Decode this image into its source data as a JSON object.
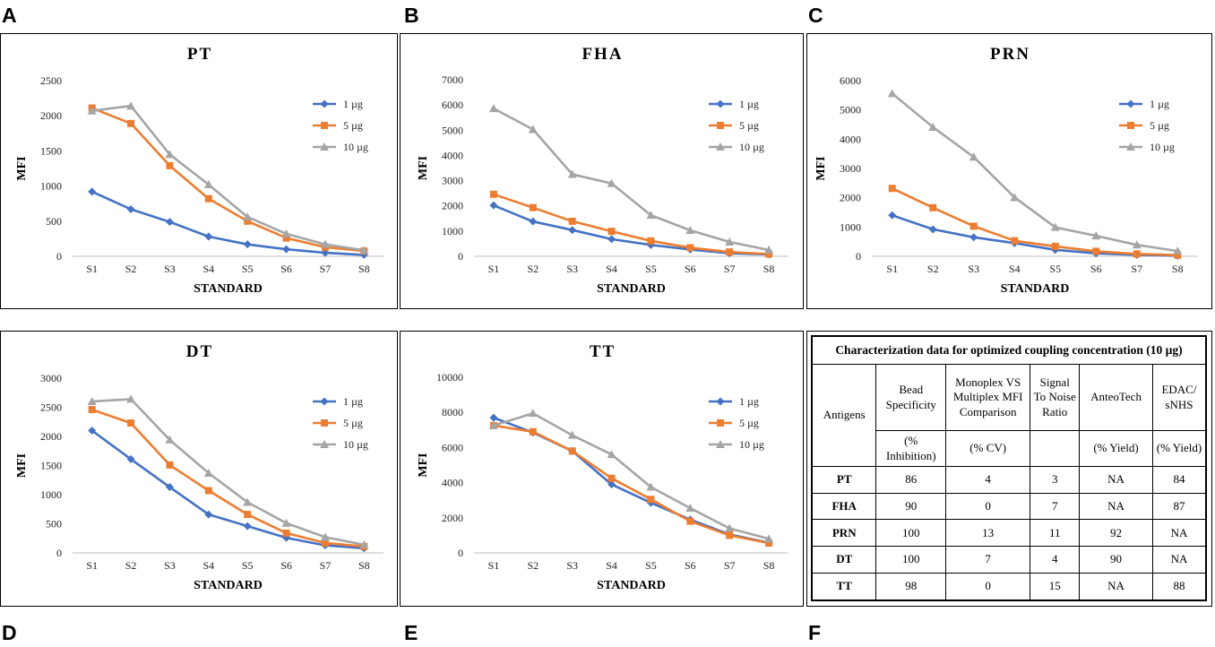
{
  "panel_labels": [
    "A",
    "B",
    "C",
    "D",
    "E",
    "F"
  ],
  "series_colors": [
    "#4472C4",
    "#ED7D31",
    "#A5A5A5"
  ],
  "legend": [
    "1 µg",
    "5 µg",
    "10 µg"
  ],
  "chart_data": [
    {
      "type": "line",
      "title": "PT",
      "xlabel": "STANDARD",
      "ylabel": "MFI",
      "categories": [
        "S1",
        "S2",
        "S3",
        "S4",
        "S5",
        "S6",
        "S7",
        "S8"
      ],
      "ylim": [
        0,
        2500
      ],
      "yticks": [
        0,
        500,
        1000,
        1500,
        2000,
        2500
      ],
      "series": [
        {
          "name": "1 µg",
          "values": [
            920,
            670,
            490,
            280,
            170,
            100,
            50,
            20
          ]
        },
        {
          "name": "5 µg",
          "values": [
            2110,
            1890,
            1290,
            820,
            500,
            260,
            130,
            75
          ]
        },
        {
          "name": "10 µg",
          "values": [
            2070,
            2140,
            1450,
            1020,
            560,
            320,
            170,
            85
          ]
        }
      ]
    },
    {
      "type": "line",
      "title": "FHA",
      "xlabel": "STANDARD",
      "ylabel": "MFI",
      "categories": [
        "S1",
        "S2",
        "S3",
        "S4",
        "S5",
        "S6",
        "S7",
        "S8"
      ],
      "ylim": [
        0,
        7000
      ],
      "yticks": [
        0,
        1000,
        2000,
        3000,
        4000,
        5000,
        6000,
        7000
      ],
      "series": [
        {
          "name": "1 µg",
          "values": [
            2020,
            1380,
            1040,
            680,
            450,
            270,
            120,
            70
          ]
        },
        {
          "name": "5 µg",
          "values": [
            2460,
            1930,
            1390,
            990,
            610,
            340,
            170,
            90
          ]
        },
        {
          "name": "10 µg",
          "values": [
            5860,
            5030,
            3250,
            2890,
            1630,
            1030,
            570,
            250
          ]
        }
      ]
    },
    {
      "type": "line",
      "title": "PRN",
      "xlabel": "STANDARD",
      "ylabel": "MFI",
      "categories": [
        "S1",
        "S2",
        "S3",
        "S4",
        "S5",
        "S6",
        "S7",
        "S8"
      ],
      "ylim": [
        0,
        6000
      ],
      "yticks": [
        0,
        1000,
        2000,
        3000,
        4000,
        5000,
        6000
      ],
      "series": [
        {
          "name": "1 µg",
          "values": [
            1400,
            920,
            650,
            450,
            220,
            100,
            50,
            20
          ]
        },
        {
          "name": "5 µg",
          "values": [
            2320,
            1660,
            1030,
            530,
            340,
            170,
            80,
            40
          ]
        },
        {
          "name": "10 µg",
          "values": [
            5560,
            4410,
            3390,
            2010,
            990,
            700,
            390,
            180
          ]
        }
      ]
    },
    {
      "type": "line",
      "title": "DT",
      "xlabel": "STANDARD",
      "ylabel": "MFI",
      "categories": [
        "S1",
        "S2",
        "S3",
        "S4",
        "S5",
        "S6",
        "S7",
        "S8"
      ],
      "ylim": [
        0,
        3000
      ],
      "yticks": [
        0,
        500,
        1000,
        1500,
        2000,
        2500,
        3000
      ],
      "series": [
        {
          "name": "1 µg",
          "values": [
            2100,
            1610,
            1130,
            660,
            460,
            260,
            130,
            80
          ]
        },
        {
          "name": "5 µg",
          "values": [
            2460,
            2230,
            1510,
            1070,
            660,
            340,
            170,
            110
          ]
        },
        {
          "name": "10 µg",
          "values": [
            2600,
            2640,
            1940,
            1370,
            870,
            510,
            270,
            140
          ]
        }
      ]
    },
    {
      "type": "line",
      "title": "TT",
      "xlabel": "STANDARD",
      "ylabel": "MFI",
      "categories": [
        "S1",
        "S2",
        "S3",
        "S4",
        "S5",
        "S6",
        "S7",
        "S8"
      ],
      "ylim": [
        0,
        10000
      ],
      "yticks": [
        0,
        2000,
        4000,
        6000,
        8000,
        10000
      ],
      "series": [
        {
          "name": "1 µg",
          "values": [
            7700,
            6850,
            5800,
            3900,
            2850,
            1900,
            1050,
            580
          ]
        },
        {
          "name": "5 µg",
          "values": [
            7250,
            6900,
            5800,
            4250,
            3050,
            1800,
            1000,
            560
          ]
        },
        {
          "name": "10 µg",
          "values": [
            7250,
            7950,
            6700,
            5600,
            3750,
            2550,
            1400,
            800
          ]
        }
      ]
    },
    {
      "type": "table",
      "caption": "Characterization data for optimized coupling concentration (10 µg)",
      "headers": [
        "Antigens",
        "Bead Specificity",
        "Monoplex VS Multiplex MFI Comparison",
        "Signal To Noise Ratio",
        "AnteoTech",
        "EDAC/ sNHS"
      ],
      "units": [
        "",
        "(% Inhibition)",
        "(% CV)",
        "",
        "(% Yield)",
        "(% Yield)"
      ],
      "rows": [
        [
          "PT",
          "86",
          "4",
          "3",
          "NA",
          "84"
        ],
        [
          "FHA",
          "90",
          "0",
          "7",
          "NA",
          "87"
        ],
        [
          "PRN",
          "100",
          "13",
          "11",
          "92",
          "NA"
        ],
        [
          "DT",
          "100",
          "7",
          "4",
          "90",
          "NA"
        ],
        [
          "TT",
          "98",
          "0",
          "15",
          "NA",
          "88"
        ]
      ]
    }
  ]
}
